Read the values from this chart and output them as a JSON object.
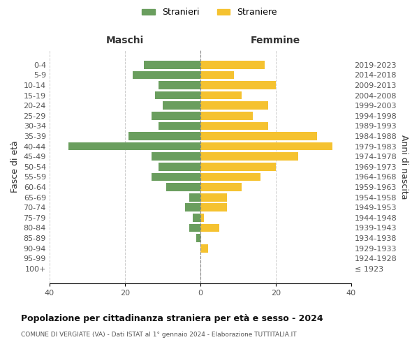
{
  "age_groups": [
    "100+",
    "95-99",
    "90-94",
    "85-89",
    "80-84",
    "75-79",
    "70-74",
    "65-69",
    "60-64",
    "55-59",
    "50-54",
    "45-49",
    "40-44",
    "35-39",
    "30-34",
    "25-29",
    "20-24",
    "15-19",
    "10-14",
    "5-9",
    "0-4"
  ],
  "birth_years": [
    "≤ 1923",
    "1924-1928",
    "1929-1933",
    "1934-1938",
    "1939-1943",
    "1944-1948",
    "1949-1953",
    "1954-1958",
    "1959-1963",
    "1964-1968",
    "1969-1973",
    "1974-1978",
    "1979-1983",
    "1984-1988",
    "1989-1993",
    "1994-1998",
    "1999-2003",
    "2004-2008",
    "2009-2013",
    "2014-2018",
    "2019-2023"
  ],
  "maschi": [
    0,
    0,
    0,
    1,
    3,
    2,
    4,
    3,
    9,
    13,
    11,
    13,
    35,
    19,
    11,
    13,
    10,
    12,
    11,
    18,
    15
  ],
  "femmine": [
    0,
    0,
    2,
    0,
    5,
    1,
    7,
    7,
    11,
    16,
    20,
    26,
    35,
    31,
    18,
    14,
    18,
    11,
    20,
    9,
    17
  ],
  "maschi_color": "#6a9e5e",
  "femmine_color": "#f5c230",
  "background_color": "#ffffff",
  "grid_color": "#cccccc",
  "title": "Popolazione per cittadinanza straniera per età e sesso - 2024",
  "subtitle": "COMUNE DI VERGIATE (VA) - Dati ISTAT al 1° gennaio 2024 - Elaborazione TUTTITALIA.IT",
  "ylabel": "Fasce di età",
  "ylabel_right": "Anni di nascita",
  "xlabel_maschi": "Maschi",
  "xlabel_femmine": "Femmine",
  "legend_maschi": "Stranieri",
  "legend_femmine": "Straniere",
  "xlim": 40,
  "bar_height": 0.8
}
